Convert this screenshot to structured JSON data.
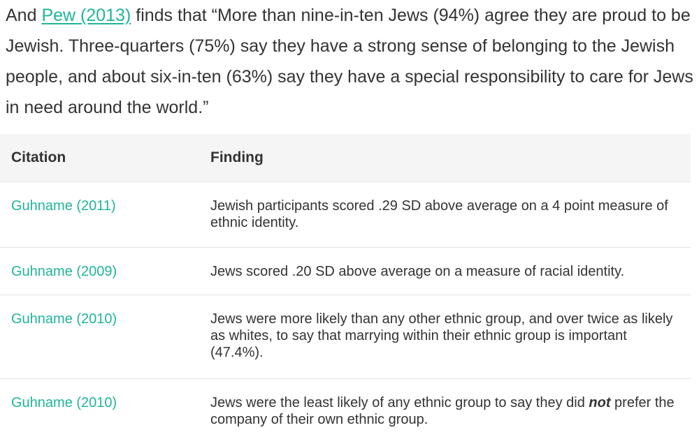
{
  "intro": {
    "prefix": "And ",
    "link_text": "Pew (2013)",
    "suffix": " finds that “More than nine-in-ten Jews (94%) agree they are proud to be Jewish. Three-quarters (75%) say they have a strong sense of belonging to the Jewish people, and about six-in-ten (63%) say they have a special responsibility to care for Jews in need around the world.”"
  },
  "table": {
    "headers": {
      "citation": "Citation",
      "finding": "Finding"
    },
    "rows": [
      {
        "citation": "Guhname (2011)",
        "finding": "Jewish participants scored .29 SD above average on a 4 point measure of ethnic identity."
      },
      {
        "citation": "Guhname (2009)",
        "finding": "Jews scored .20 SD above average on a measure of racial identity."
      },
      {
        "citation": "Guhname (2010)",
        "finding": "Jews were more likely than any other ethnic group, and over twice as likely as whites, to say that marrying within their ethnic group is important (47.4%)."
      },
      {
        "citation": "Guhname (2010)",
        "finding_before": "Jews were the least likely of any ethnic group to say they did ",
        "finding_emphasis": "not",
        "finding_after": " prefer the company of their own ethnic group."
      }
    ]
  },
  "colors": {
    "link": "#1fb59a",
    "text": "#333333",
    "header_bg": "#f5f5f5",
    "border": "#e2e2e2"
  }
}
